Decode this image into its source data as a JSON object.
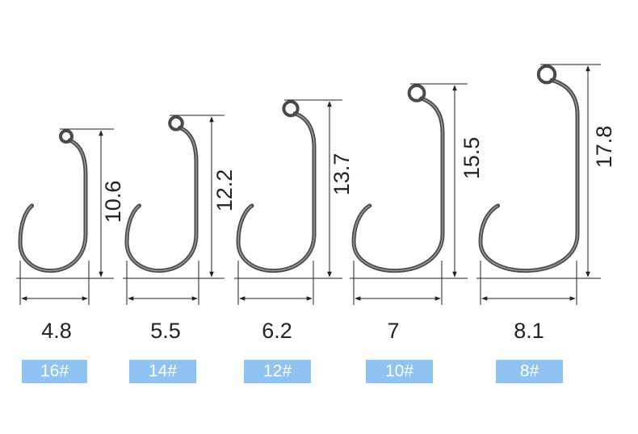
{
  "hooks": [
    {
      "height": "10.6",
      "width": "4.8",
      "size": "16#"
    },
    {
      "height": "12.2",
      "width": "5.5",
      "size": "14#"
    },
    {
      "height": "13.7",
      "width": "6.2",
      "size": "12#"
    },
    {
      "height": "15.5",
      "width": "7",
      "size": "10#"
    },
    {
      "height": "17.8",
      "width": "8.1",
      "size": "8#"
    }
  ]
}
